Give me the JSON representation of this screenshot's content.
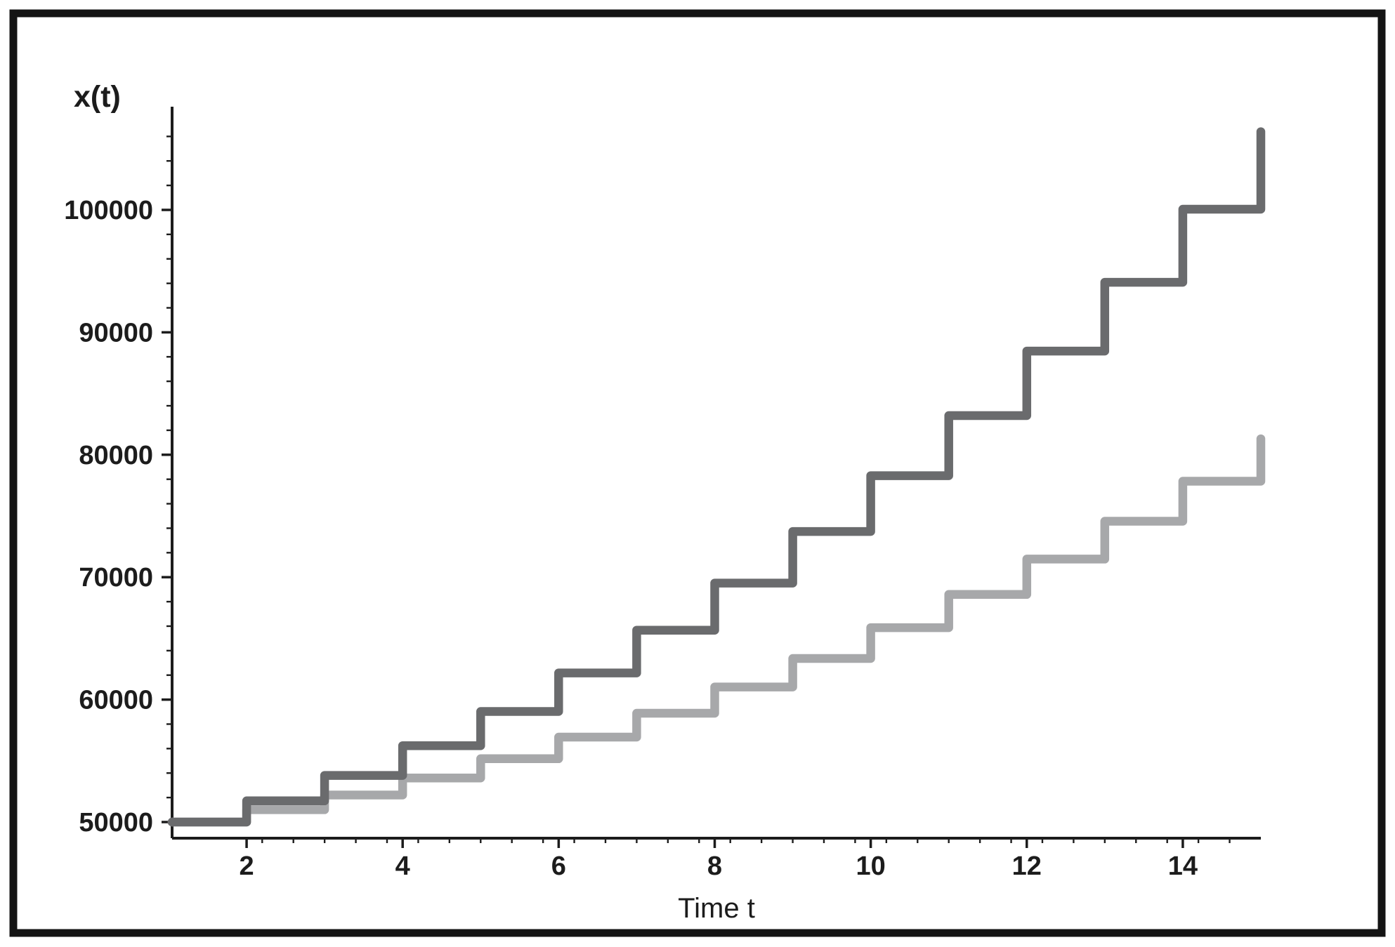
{
  "figure": {
    "background_color": "#ffffff",
    "frame_color": "#141414",
    "axis_color": "#1c1c1c",
    "y_axis_title": "x(t)",
    "x_axis_title": "Time t"
  },
  "chart_data": {
    "type": "line",
    "subtype": "staircase-step",
    "title": "",
    "xlabel": "Time t",
    "ylabel": "x(t)",
    "grid": false,
    "legend": "none",
    "xlim": [
      1,
      15
    ],
    "ylim": [
      50000,
      108800
    ],
    "x_tick_labels": [
      "2",
      "4",
      "6",
      "8",
      "10",
      "12",
      "14"
    ],
    "x_tick_values": [
      2,
      4,
      6,
      8,
      10,
      12,
      14
    ],
    "x_minor_tick_step": 0.4,
    "y_tick_labels": [
      "50000",
      "60000",
      "70000",
      "80000",
      "90000",
      "100000"
    ],
    "y_tick_values": [
      50000,
      60000,
      70000,
      80000,
      90000,
      100000
    ],
    "y_minor_tick_step": 2000,
    "t": [
      1,
      2,
      3,
      4,
      5,
      6,
      7,
      8,
      9,
      10,
      11,
      12,
      13,
      14,
      15
    ],
    "series": [
      {
        "name": "upper-dark-gray-staircase",
        "color": "#6a6b6d",
        "values": [
          50000,
          51730,
          53810,
          56240,
          59030,
          62180,
          65670,
          69520,
          73730,
          78290,
          83200,
          88470,
          94090,
          100060,
          106390
        ]
      },
      {
        "name": "lower-light-gray-staircase",
        "color": "#a7a8aa",
        "values": [
          50000,
          51010,
          52210,
          53600,
          55170,
          56940,
          58890,
          61030,
          63360,
          65880,
          68590,
          71480,
          74570,
          77840,
          81300
        ]
      }
    ]
  },
  "layout_note_values_visible_only": true
}
